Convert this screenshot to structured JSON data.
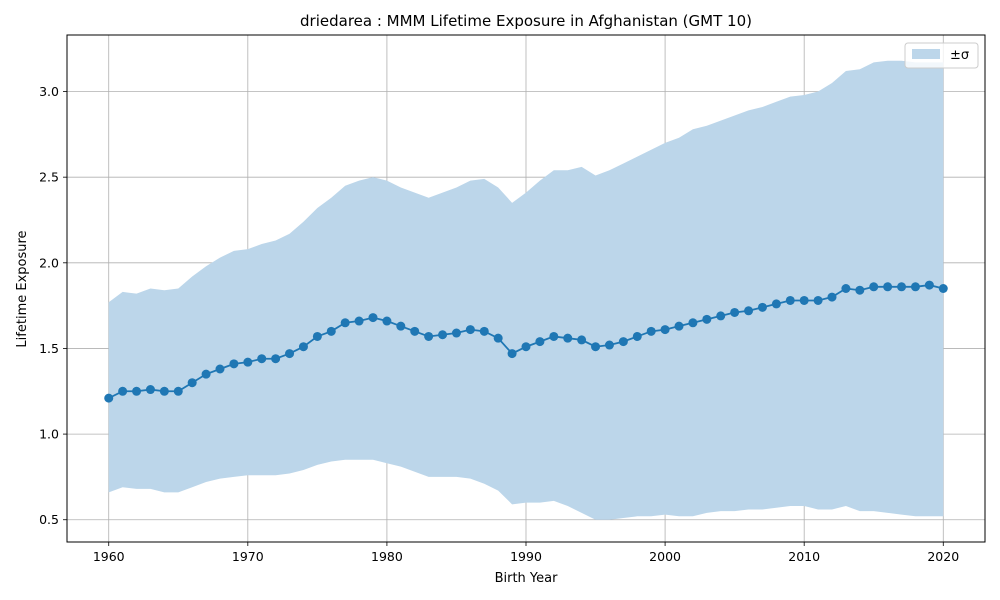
{
  "chart_data": {
    "type": "line",
    "title": "driedarea : MMM Lifetime Exposure in Afghanistan (GMT 10)",
    "xlabel": "Birth Year",
    "ylabel": "Lifetime Exposure",
    "xlim": [
      1957,
      2023
    ],
    "ylim": [
      0.37,
      3.33
    ],
    "xticks": [
      1960,
      1970,
      1980,
      1990,
      2000,
      2010,
      2020
    ],
    "yticks": [
      0.5,
      1.0,
      1.5,
      2.0,
      2.5,
      3.0
    ],
    "xtick_labels": [
      "1960",
      "1970",
      "1980",
      "1990",
      "2000",
      "2010",
      "2020"
    ],
    "ytick_labels": [
      "0.5",
      "1.0",
      "1.5",
      "2.0",
      "2.5",
      "3.0"
    ],
    "grid": true,
    "legend_position": "top-right",
    "legend": [
      {
        "label": "±σ"
      }
    ],
    "colors": {
      "line": "#1f77b4",
      "band": "#bcd6ea",
      "grid": "#b0b0b0"
    },
    "x": [
      1960,
      1961,
      1962,
      1963,
      1964,
      1965,
      1966,
      1967,
      1968,
      1969,
      1970,
      1971,
      1972,
      1973,
      1974,
      1975,
      1976,
      1977,
      1978,
      1979,
      1980,
      1981,
      1982,
      1983,
      1984,
      1985,
      1986,
      1987,
      1988,
      1989,
      1990,
      1991,
      1992,
      1993,
      1994,
      1995,
      1996,
      1997,
      1998,
      1999,
      2000,
      2001,
      2002,
      2003,
      2004,
      2005,
      2006,
      2007,
      2008,
      2009,
      2010,
      2011,
      2012,
      2013,
      2014,
      2015,
      2016,
      2017,
      2018,
      2019,
      2020
    ],
    "series": [
      {
        "values": [
          1.21,
          1.25,
          1.25,
          1.26,
          1.25,
          1.25,
          1.3,
          1.35,
          1.38,
          1.41,
          1.42,
          1.44,
          1.44,
          1.47,
          1.51,
          1.57,
          1.6,
          1.65,
          1.66,
          1.68,
          1.66,
          1.63,
          1.6,
          1.57,
          1.58,
          1.59,
          1.61,
          1.6,
          1.56,
          1.47,
          1.51,
          1.54,
          1.57,
          1.56,
          1.55,
          1.51,
          1.52,
          1.54,
          1.57,
          1.6,
          1.61,
          1.63,
          1.65,
          1.67,
          1.69,
          1.71,
          1.72,
          1.74,
          1.76,
          1.78,
          1.78,
          1.78,
          1.8,
          1.85,
          1.84,
          1.86,
          1.86,
          1.86,
          1.86,
          1.87,
          1.85
        ]
      }
    ],
    "band_upper": [
      1.77,
      1.83,
      1.82,
      1.85,
      1.84,
      1.85,
      1.92,
      1.98,
      2.03,
      2.07,
      2.08,
      2.11,
      2.13,
      2.17,
      2.24,
      2.32,
      2.38,
      2.45,
      2.48,
      2.5,
      2.48,
      2.44,
      2.41,
      2.38,
      2.41,
      2.44,
      2.48,
      2.49,
      2.44,
      2.35,
      2.41,
      2.48,
      2.54,
      2.54,
      2.56,
      2.51,
      2.54,
      2.58,
      2.62,
      2.66,
      2.7,
      2.73,
      2.78,
      2.8,
      2.83,
      2.86,
      2.89,
      2.91,
      2.94,
      2.97,
      2.98,
      3.0,
      3.05,
      3.12,
      3.13,
      3.17,
      3.18,
      3.18,
      3.17,
      3.17,
      3.17
    ],
    "band_lower": [
      0.66,
      0.69,
      0.68,
      0.68,
      0.66,
      0.66,
      0.69,
      0.72,
      0.74,
      0.75,
      0.76,
      0.76,
      0.76,
      0.77,
      0.79,
      0.82,
      0.84,
      0.85,
      0.85,
      0.85,
      0.83,
      0.81,
      0.78,
      0.75,
      0.75,
      0.75,
      0.74,
      0.71,
      0.67,
      0.59,
      0.6,
      0.6,
      0.61,
      0.58,
      0.54,
      0.5,
      0.5,
      0.51,
      0.52,
      0.52,
      0.53,
      0.52,
      0.52,
      0.54,
      0.55,
      0.55,
      0.56,
      0.56,
      0.57,
      0.58,
      0.58,
      0.56,
      0.56,
      0.58,
      0.55,
      0.55,
      0.54,
      0.53,
      0.52,
      0.52,
      0.52
    ]
  }
}
